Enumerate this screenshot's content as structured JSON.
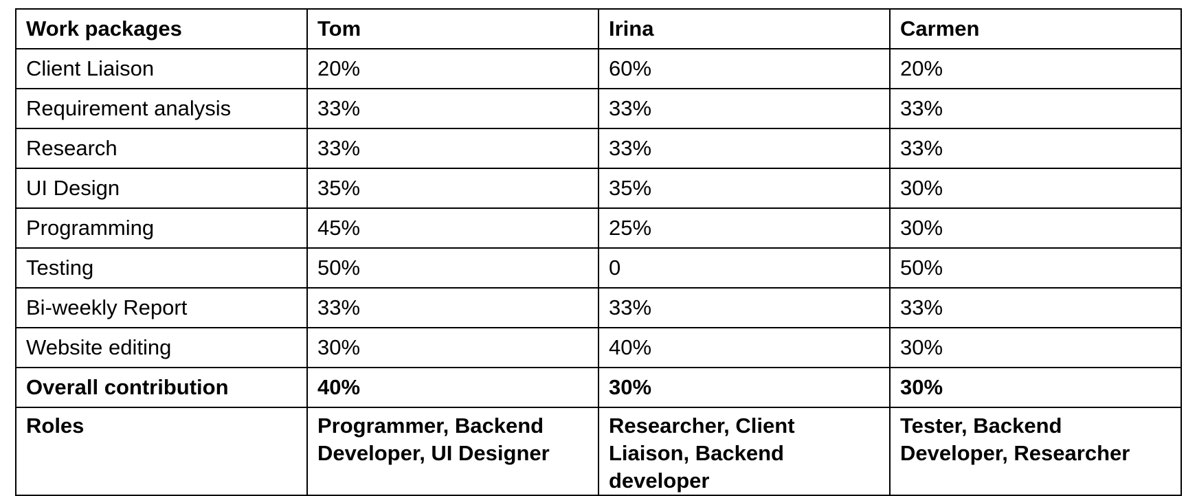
{
  "table": {
    "headers": [
      "Work packages",
      "Tom",
      "Irina",
      "Carmen"
    ],
    "rows": [
      [
        "Client Liaison",
        "20%",
        "60%",
        "20%"
      ],
      [
        "Requirement analysis",
        "33%",
        "33%",
        "33%"
      ],
      [
        "Research",
        "33%",
        "33%",
        "33%"
      ],
      [
        "UI Design",
        "35%",
        "35%",
        "30%"
      ],
      [
        "Programming",
        "45%",
        "25%",
        "30%"
      ],
      [
        "Testing",
        "50%",
        "0",
        "50%"
      ],
      [
        "Bi-weekly Report",
        "33%",
        "33%",
        "33%"
      ],
      [
        "Website editing",
        "30%",
        "40%",
        "30%"
      ]
    ],
    "overall": [
      "Overall contribution",
      "40%",
      "30%",
      "30%"
    ],
    "roles": [
      "Roles",
      "Programmer, Backend Developer, UI Designer",
      "Researcher, Client Liaison, Backend developer",
      "Tester, Backend Developer, Researcher"
    ]
  }
}
